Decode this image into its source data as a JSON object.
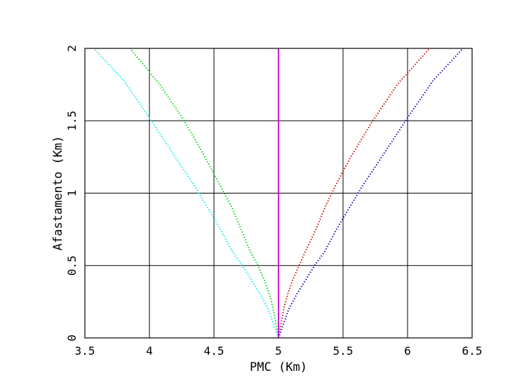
{
  "chart_data": {
    "type": "scatter",
    "title": "",
    "xlabel": "PMC (Km)",
    "ylabel": "Afastamento (Km)",
    "xlim": [
      3.5,
      6.5
    ],
    "ylim": [
      0,
      2
    ],
    "x_ticks": [
      3.5,
      4,
      4.5,
      5,
      5.5,
      6,
      6.5
    ],
    "y_ticks": [
      0,
      0.5,
      1,
      1.5,
      2
    ],
    "x_tick_labels": [
      "3.5",
      "4",
      "4.5",
      "5",
      "5.5",
      "6",
      "6.5"
    ],
    "y_tick_labels": [
      "0",
      "0.5",
      "1",
      "1.5",
      "2"
    ],
    "grid": true,
    "series": [
      {
        "color": "#00e5e5",
        "style": "dotted",
        "points": [
          [
            5.0,
            0.0
          ],
          [
            4.96,
            0.1
          ],
          [
            4.92,
            0.2
          ],
          [
            4.86,
            0.3
          ],
          [
            4.79,
            0.4
          ],
          [
            4.72,
            0.5
          ],
          [
            4.64,
            0.6
          ],
          [
            4.55,
            0.75
          ],
          [
            4.45,
            0.9
          ],
          [
            4.35,
            1.05
          ],
          [
            4.2,
            1.25
          ],
          [
            4.0,
            1.52
          ],
          [
            3.8,
            1.78
          ],
          [
            3.57,
            2.0
          ]
        ]
      },
      {
        "color": "#00cc00",
        "style": "dotted",
        "points": [
          [
            5.0,
            0.0
          ],
          [
            4.98,
            0.1
          ],
          [
            4.96,
            0.2
          ],
          [
            4.93,
            0.3
          ],
          [
            4.89,
            0.4
          ],
          [
            4.84,
            0.5
          ],
          [
            4.78,
            0.6
          ],
          [
            4.71,
            0.75
          ],
          [
            4.64,
            0.9
          ],
          [
            4.55,
            1.05
          ],
          [
            4.43,
            1.25
          ],
          [
            4.27,
            1.5
          ],
          [
            4.08,
            1.75
          ],
          [
            3.85,
            2.0
          ]
        ]
      },
      {
        "color": "#cc0000",
        "style": "dotted",
        "points": [
          [
            5.0,
            0.0
          ],
          [
            5.02,
            0.1
          ],
          [
            5.04,
            0.2
          ],
          [
            5.07,
            0.3
          ],
          [
            5.11,
            0.4
          ],
          [
            5.16,
            0.5
          ],
          [
            5.21,
            0.6
          ],
          [
            5.29,
            0.75
          ],
          [
            5.36,
            0.9
          ],
          [
            5.44,
            1.05
          ],
          [
            5.56,
            1.25
          ],
          [
            5.73,
            1.5
          ],
          [
            5.92,
            1.75
          ],
          [
            6.17,
            2.0
          ]
        ]
      },
      {
        "color": "#0000bb",
        "style": "dotted",
        "points": [
          [
            5.0,
            0.0
          ],
          [
            5.04,
            0.1
          ],
          [
            5.08,
            0.2
          ],
          [
            5.14,
            0.3
          ],
          [
            5.21,
            0.4
          ],
          [
            5.28,
            0.5
          ],
          [
            5.36,
            0.6
          ],
          [
            5.45,
            0.75
          ],
          [
            5.55,
            0.9
          ],
          [
            5.65,
            1.05
          ],
          [
            5.8,
            1.25
          ],
          [
            6.0,
            1.52
          ],
          [
            6.2,
            1.78
          ],
          [
            6.43,
            2.0
          ]
        ]
      },
      {
        "color": "#cc00cc",
        "style": "solid",
        "points": [
          [
            5.0,
            0.0
          ],
          [
            5.0,
            2.0
          ]
        ]
      }
    ]
  }
}
